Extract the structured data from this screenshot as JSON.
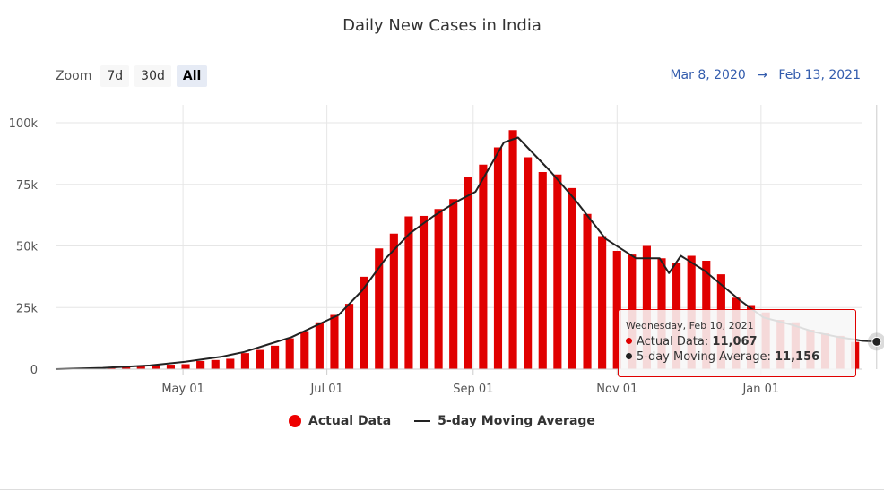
{
  "chart_data": {
    "type": "bar",
    "title": "Daily New Cases in India",
    "x_range": [
      "2020-03-08",
      "2021-02-13"
    ],
    "ylim": [
      0,
      100000
    ],
    "y_ticks": [
      "0",
      "25k",
      "50k",
      "75k",
      "100k"
    ],
    "x_ticks": [
      "May 01",
      "Jul 01",
      "Sep 01",
      "Nov 01",
      "Jan 01"
    ],
    "legend_position": "bottom-center",
    "grid": true,
    "series": [
      {
        "name": "Actual Data",
        "type": "bar",
        "color": "#e00000",
        "values_k": [
          0.1,
          0.2,
          0.3,
          0.6,
          1.0,
          1.5,
          1.7,
          1.8,
          2.0,
          3.3,
          3.7,
          4.2,
          6.5,
          7.8,
          9.5,
          12.5,
          15.4,
          19.0,
          22.0,
          26.5,
          37.5,
          49.0,
          55.0,
          62.0,
          62.2,
          65.0,
          69.0,
          78.0,
          83.0,
          90.0,
          97.0,
          86.0,
          80.0,
          79.0,
          73.5,
          63.0,
          54.0,
          48.0,
          46.5,
          50.0,
          45.0,
          43.0,
          46.0,
          44.0,
          38.5,
          29.0,
          26.0,
          23.0,
          20.0,
          19.0,
          16.0,
          14.5,
          13.5,
          11.0
        ]
      },
      {
        "name": "5-day Moving Average",
        "type": "line",
        "color": "#222222",
        "points_k": [
          [
            0,
            0
          ],
          [
            20,
            0.5
          ],
          [
            40,
            1.5
          ],
          [
            55,
            3
          ],
          [
            70,
            5
          ],
          [
            80,
            7
          ],
          [
            90,
            10
          ],
          [
            100,
            13
          ],
          [
            110,
            17.5
          ],
          [
            120,
            22
          ],
          [
            130,
            32
          ],
          [
            140,
            45
          ],
          [
            150,
            55
          ],
          [
            160,
            62
          ],
          [
            170,
            68
          ],
          [
            178,
            72
          ],
          [
            190,
            92
          ],
          [
            196,
            94
          ],
          [
            200,
            90
          ],
          [
            210,
            80
          ],
          [
            220,
            69
          ],
          [
            233,
            53
          ],
          [
            246,
            45
          ],
          [
            256,
            45
          ],
          [
            260,
            39
          ],
          [
            265,
            46
          ],
          [
            275,
            40
          ],
          [
            290,
            28
          ],
          [
            300,
            21
          ],
          [
            312,
            18
          ],
          [
            322,
            15
          ],
          [
            332,
            13
          ],
          [
            342,
            11.5
          ],
          [
            348,
            11.156
          ]
        ]
      }
    ]
  },
  "zoom": {
    "label": "Zoom",
    "buttons": [
      "7d",
      "30d",
      "All"
    ],
    "active": "All"
  },
  "range": {
    "from": "Mar 8, 2020",
    "arrow": "→",
    "to": "Feb 13, 2021"
  },
  "tooltip": {
    "date": "Wednesday, Feb 10, 2021",
    "actual_label": "Actual Data: ",
    "actual_value": "11,067",
    "avg_label": "5-day Moving Average: ",
    "avg_value": "11,156"
  },
  "colors": {
    "bars": "#e00000",
    "line": "#222222",
    "grid": "#e6e6e6"
  }
}
